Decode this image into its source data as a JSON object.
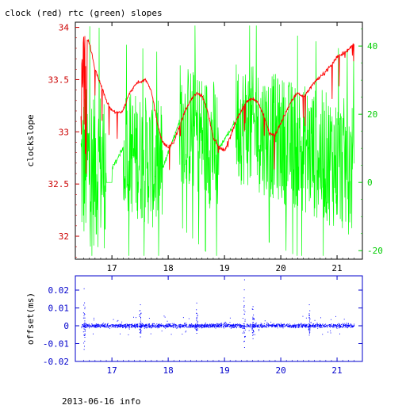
{
  "chart_data": [
    {
      "type": "line",
      "title": "clock (red) rtc (green) slopes",
      "xlabel": "",
      "ylabel": "clockslope",
      "xlim": [
        16.35,
        21.45
      ],
      "x_ticks": [
        "17",
        "18",
        "19",
        "20",
        "21"
      ],
      "ylim": [
        31.78,
        34.05
      ],
      "y_ticks": [
        "32",
        "32.5",
        "33",
        "33.5",
        "34"
      ],
      "y2lim": [
        -22.5,
        47
      ],
      "y2_ticks": [
        "-20",
        "0",
        "20",
        "40"
      ],
      "grid": false,
      "colors": {
        "axis": "#000000",
        "left_axis": "#cc0000",
        "right_axis": "#00cc00"
      },
      "series": [
        {
          "axis": "left",
          "color": "#ff0000",
          "x": [
            16.45,
            16.5,
            16.55,
            16.6,
            16.7,
            16.8,
            16.9,
            17.0,
            17.1,
            17.2,
            17.3,
            17.4,
            17.5,
            17.6,
            17.7,
            17.8,
            17.9,
            18.0,
            18.1,
            18.2,
            18.3,
            18.4,
            18.5,
            18.6,
            18.7,
            18.8,
            18.9,
            19.0,
            19.1,
            19.2,
            19.3,
            19.4,
            19.5,
            19.6,
            19.7,
            19.8,
            19.9,
            20.0,
            20.1,
            20.2,
            20.3,
            20.4,
            20.5,
            20.6,
            20.7,
            20.8,
            20.9,
            21.0,
            21.1,
            21.2,
            21.3
          ],
          "y": [
            33.55,
            33.92,
            33.9,
            33.85,
            33.6,
            33.45,
            33.3,
            33.2,
            33.18,
            33.2,
            33.35,
            33.45,
            33.48,
            33.5,
            33.4,
            33.1,
            32.9,
            32.85,
            32.9,
            33.05,
            33.2,
            33.3,
            33.37,
            33.35,
            33.2,
            32.95,
            32.85,
            32.82,
            32.95,
            33.1,
            33.2,
            33.3,
            33.32,
            33.28,
            33.15,
            32.98,
            32.97,
            33.08,
            33.2,
            33.3,
            33.38,
            33.33,
            33.4,
            33.48,
            33.52,
            33.58,
            33.64,
            33.72,
            33.75,
            33.78,
            33.85
          ]
        },
        {
          "axis": "right",
          "color": "#00ff00",
          "x": [
            16.45,
            16.6,
            17.0,
            17.2,
            17.9,
            18.2,
            18.9,
            19.2,
            21.3
          ],
          "noise_amplitude": [
            24,
            24,
            24,
            18,
            20,
            18,
            20,
            18,
            20
          ],
          "quiet_x": [
            [
              17.0,
              17.2
            ],
            [
              17.9,
              18.2
            ],
            [
              18.9,
              19.2
            ]
          ],
          "y": [
            4,
            5,
            4,
            10,
            4,
            18,
            10,
            18,
            4
          ]
        }
      ]
    },
    {
      "type": "scatter",
      "xlabel": "",
      "ylabel": "offset(ms)",
      "xlim": [
        16.35,
        21.45
      ],
      "x_ticks": [
        "17",
        "18",
        "19",
        "20",
        "21"
      ],
      "ylim": [
        -0.02,
        0.028
      ],
      "y_ticks": [
        "-0.02",
        "-0.01",
        "0",
        "0.01",
        "0.02"
      ],
      "grid": false,
      "colors": {
        "axis": "#0000cc",
        "points": "#0000ff"
      },
      "series": [
        {
          "x_range": [
            16.45,
            21.3
          ],
          "y_center": 0.0,
          "y_spread": 0.0015,
          "spikes": [
            {
              "x": 16.5,
              "y": 0.021
            },
            {
              "x": 16.5,
              "y": -0.013
            },
            {
              "x": 17.5,
              "y": 0.012
            },
            {
              "x": 17.5,
              "y": -0.006
            },
            {
              "x": 18.5,
              "y": 0.013
            },
            {
              "x": 18.5,
              "y": -0.004
            },
            {
              "x": 19.35,
              "y": 0.026
            },
            {
              "x": 19.35,
              "y": -0.012
            },
            {
              "x": 19.5,
              "y": 0.011
            },
            {
              "x": 19.5,
              "y": -0.007
            },
            {
              "x": 20.5,
              "y": 0.012
            },
            {
              "x": 20.5,
              "y": -0.005
            }
          ]
        }
      ]
    }
  ],
  "footer": {
    "caption": "2013-06-16 info"
  }
}
